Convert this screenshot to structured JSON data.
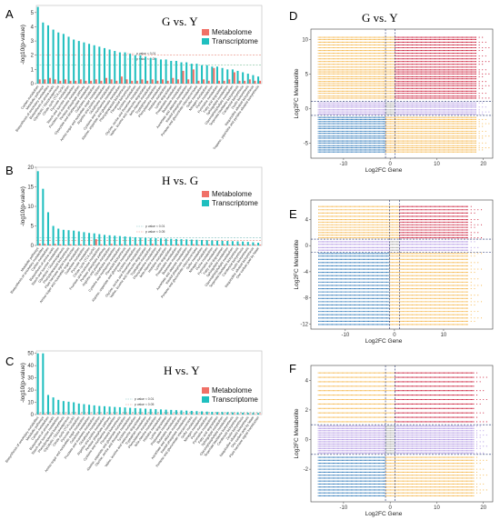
{
  "chart_data": [
    {
      "id": "A",
      "type": "bar",
      "title": "G vs. Y",
      "ylabel": "-log10(p-value)",
      "ylim": [
        0,
        5.5
      ],
      "yticks": [
        0,
        1,
        2,
        3,
        4,
        5
      ],
      "thresholds": [
        {
          "label": "p value < 0.01",
          "value": 2.0,
          "color": "#e8887c"
        },
        {
          "label": "p value < 0.05",
          "value": 1.3,
          "color": "#7fbf9a"
        }
      ],
      "colors": {
        "Metabolome": "#f07067",
        "Transcriptome": "#1fbfbf"
      },
      "categories": [
        "Carbon metabolism",
        "Metabolic pathways",
        "Biosynthesis of secondary metabolites",
        "Biosynthesis of amino acids",
        "Glycolysis / Gluconeogenesis",
        "Citrate cycle (TCA cycle)",
        "Pyruvate metabolism",
        "Starch and sucrose metabolism",
        "Fructose and mannose metabolism",
        "Pentose phosphate pathway",
        "Glyoxylate and dicarboxylate metabolism",
        "Galactose metabolism",
        "Amino sugar and nucleotide sugar metabolism",
        "Arginine and proline metabolism",
        "Glutathione metabolism",
        "Cysteine and methionine metabolism",
        "Alanine, aspartate and glutamate metabolism",
        "Phenylpropanoid biosynthesis",
        "Flavonoid biosynthesis",
        "Tyrosine metabolism",
        "Glycine, serine and threonine metabolism",
        "Valine, leucine and isoleucine degradation",
        "beta-Alanine metabolism",
        "Tryptophan metabolism",
        "Phenylalanine metabolism",
        "Histidine metabolism",
        "Lysine degradation",
        "Propanoate metabolism",
        "Butanoate metabolism",
        "Ascorbate and aldarate metabolism",
        "Inositol phosphate metabolism",
        "Pentose and glucuronate interconversions",
        "Sulfur metabolism",
        "Nitrogen metabolism",
        "Purine metabolism",
        "Pyrimidine metabolism",
        "Fatty acid degradation",
        "Sphingolipid metabolism",
        "Glycerophospholipid metabolism",
        "Terpenoid backbone biosynthesis",
        "Carotenoid biosynthesis",
        "Zeatin biosynthesis",
        "Isoquinoline alkaloid biosynthesis",
        "Tropane, piperidine and pyridine alkaloid biosynthesis"
      ],
      "series": [
        {
          "name": "Metabolome",
          "values": [
            0.3,
            0.3,
            0.4,
            0.3,
            0.2,
            0.3,
            0.2,
            0.2,
            0.3,
            0.2,
            0.2,
            0.3,
            0.2,
            0.4,
            0.3,
            0.2,
            0.5,
            0.3,
            0.2,
            0.2,
            0.3,
            0.2,
            0.3,
            0.2,
            0.3,
            0.2,
            0.4,
            0.3,
            0.9,
            0.3,
            1.0,
            0.2,
            0.3,
            0.2,
            1.1,
            0.2,
            0.2,
            0.3,
            0.8,
            0.2,
            0.2,
            0.3,
            0.2,
            0.2
          ]
        },
        {
          "name": "Transcriptome",
          "values": [
            5.4,
            4.3,
            4.1,
            3.8,
            3.6,
            3.5,
            3.3,
            3.1,
            3.0,
            2.9,
            2.8,
            2.7,
            2.6,
            2.5,
            2.4,
            2.3,
            2.2,
            2.2,
            2.1,
            2.0,
            2.0,
            1.9,
            1.8,
            1.8,
            1.7,
            1.7,
            1.6,
            1.6,
            1.5,
            1.5,
            1.4,
            1.4,
            1.3,
            1.3,
            1.2,
            1.2,
            1.1,
            1.0,
            1.0,
            0.9,
            0.8,
            0.7,
            0.6,
            0.5
          ]
        }
      ]
    },
    {
      "id": "B",
      "type": "bar",
      "title": "H vs. G",
      "ylabel": "-log10(p-value)",
      "ylim": [
        0,
        20
      ],
      "yticks": [
        0,
        5,
        10,
        15,
        20
      ],
      "thresholds": [
        {
          "label": "p value < 0.01",
          "value": 2.0,
          "color": "#7fbfbf"
        },
        {
          "label": "p value < 0.05",
          "value": 1.3,
          "color": "#e8887c"
        }
      ],
      "colors": {
        "Metabolome": "#f07067",
        "Transcriptome": "#1fbfbf"
      },
      "categories": [
        "Metabolic pathways",
        "Biosynthesis of secondary metabolites",
        "Carbon metabolism",
        "Biosynthesis of amino acids",
        "Starch and sucrose metabolism",
        "Glycolysis / Gluconeogenesis",
        "Phenylpropanoid biosynthesis",
        "Plant hormone signal transduction",
        "Amino sugar and nucleotide sugar metabolism",
        "Galactose metabolism",
        "Pyruvate metabolism",
        "Citrate cycle (TCA cycle)",
        "Fructose and mannose metabolism",
        "Pentose phosphate pathway",
        "Arginine and proline metabolism",
        "Glutathione metabolism",
        "Cysteine and methionine metabolism",
        "Flavonoid biosynthesis",
        "Alanine, aspartate and glutamate metabolism",
        "Tyrosine metabolism",
        "Glycine, serine and threonine metabolism",
        "Valine, leucine and isoleucine degradation",
        "Tryptophan metabolism",
        "Phenylalanine metabolism",
        "beta-Alanine metabolism",
        "Histidine metabolism",
        "Lysine degradation",
        "Propanoate metabolism",
        "Butanoate metabolism",
        "Ascorbate and aldarate metabolism",
        "Inositol phosphate metabolism",
        "Pentose and glucuronate interconversions",
        "Sulfur metabolism",
        "Nitrogen metabolism",
        "Purine metabolism",
        "Pyrimidine metabolism",
        "Fatty acid degradation",
        "Sphingolipid metabolism",
        "Glycerophospholipid metabolism",
        "Terpenoid backbone biosynthesis",
        "Carotenoid biosynthesis",
        "Zeatin biosynthesis",
        "Isoquinoline alkaloid biosynthesis",
        "One carbon pool by folate"
      ],
      "series": [
        {
          "name": "Metabolome",
          "values": [
            0.5,
            0.4,
            0.3,
            0.4,
            0.3,
            0.2,
            0.3,
            0.2,
            0.3,
            0.2,
            0.2,
            1.6,
            0.3,
            0.2,
            0.4,
            0.2,
            0.3,
            0.2,
            0.2,
            0.3,
            0.2,
            0.2,
            0.4,
            0.2,
            0.3,
            0.2,
            0.2,
            0.3,
            0.2,
            0.2,
            0.3,
            0.2,
            0.2,
            0.3,
            0.2,
            0.2,
            0.3,
            0.2,
            0.2,
            0.3,
            0.2,
            0.2,
            0.2,
            0.2
          ]
        },
        {
          "name": "Transcriptome",
          "values": [
            19.0,
            14.5,
            8.5,
            5.0,
            4.3,
            4.0,
            3.9,
            3.8,
            3.6,
            3.4,
            3.2,
            3.1,
            2.9,
            2.7,
            2.6,
            2.5,
            2.4,
            2.3,
            2.2,
            2.1,
            2.0,
            1.95,
            1.9,
            1.85,
            1.8,
            1.75,
            1.7,
            1.65,
            1.6,
            1.55,
            1.5,
            1.45,
            1.4,
            1.35,
            1.3,
            1.25,
            1.2,
            1.15,
            1.1,
            1.05,
            1.0,
            0.9,
            0.8,
            0.7
          ]
        }
      ]
    },
    {
      "id": "C",
      "type": "bar",
      "title": "H vs. Y",
      "ylabel": "-log10(p-value)",
      "ylim": [
        0,
        52
      ],
      "yticks": [
        0,
        10,
        20,
        30,
        40,
        50
      ],
      "thresholds": [
        {
          "label": "p value < 0.01",
          "value": 2.0,
          "color": "#7fbfbf"
        },
        {
          "label": "p value < 0.05",
          "value": 1.3,
          "color": "#e8887c"
        }
      ],
      "colors": {
        "Metabolome": "#f07067",
        "Transcriptome": "#1fbfbf"
      },
      "categories": [
        "Biosynthesis of secondary metabolites",
        "Metabolic pathways",
        "Carbon metabolism",
        "Biosynthesis of amino acids",
        "Starch and sucrose metabolism",
        "Phenylpropanoid biosynthesis",
        "Glycolysis / Gluconeogenesis",
        "Citrate cycle (TCA cycle)",
        "Pyruvate metabolism",
        "Amino sugar and nucleotide sugar metabolism",
        "Galactose metabolism",
        "Fructose and mannose metabolism",
        "Glutathione metabolism",
        "Arginine and proline metabolism",
        "Pentose phosphate pathway",
        "Cysteine and methionine metabolism",
        "Flavonoid biosynthesis",
        "Alanine, aspartate and glutamate metabolism",
        "Glycine, serine and threonine metabolism",
        "Tyrosine metabolism",
        "Valine, leucine and isoleucine degradation",
        "Tryptophan metabolism",
        "Phenylalanine metabolism",
        "beta-Alanine metabolism",
        "Histidine metabolism",
        "Lysine degradation",
        "Propanoate metabolism",
        "Butanoate metabolism",
        "Ascorbate and aldarate metabolism",
        "Inositol phosphate metabolism",
        "Pentose and glucuronate interconversions",
        "Sulfur metabolism",
        "Nitrogen metabolism",
        "Purine metabolism",
        "Pyrimidine metabolism",
        "Fatty acid degradation",
        "Sphingolipid metabolism",
        "Glycerophospholipid metabolism",
        "Terpenoid backbone biosynthesis",
        "Carotenoid biosynthesis",
        "Zeatin biosynthesis",
        "Isoquinoline alkaloid biosynthesis",
        "One carbon pool by folate",
        "Plant hormone signal transduction"
      ],
      "series": [
        {
          "name": "Metabolome",
          "values": [
            0.5,
            0.6,
            0.4,
            0.5,
            0.3,
            0.4,
            0.3,
            0.3,
            0.4,
            0.3,
            0.3,
            0.4,
            0.3,
            0.3,
            0.4,
            0.3,
            0.3,
            0.4,
            0.3,
            0.3,
            0.4,
            0.3,
            0.3,
            0.4,
            0.3,
            0.3,
            0.4,
            0.3,
            0.3,
            0.4,
            0.3,
            0.3,
            0.4,
            0.3,
            0.3,
            0.4,
            0.3,
            0.3,
            0.4,
            0.3,
            0.3,
            0.4,
            0.3,
            0.3
          ]
        },
        {
          "name": "Transcriptome",
          "values": [
            50.0,
            50.0,
            16.0,
            14.0,
            12.0,
            11.0,
            10.5,
            10.0,
            9.0,
            8.5,
            8.0,
            7.5,
            7.0,
            6.8,
            6.5,
            6.2,
            6.0,
            5.8,
            5.5,
            5.3,
            5.0,
            4.8,
            4.6,
            4.4,
            4.2,
            4.0,
            3.8,
            3.6,
            3.4,
            3.2,
            3.0,
            2.8,
            2.6,
            2.4,
            2.2,
            2.0,
            1.9,
            1.8,
            1.7,
            1.6,
            1.5,
            1.4,
            1.3,
            1.2
          ]
        }
      ]
    },
    {
      "id": "D",
      "type": "scatter",
      "title": "G vs. Y",
      "xlabel": "Log2FC Gene",
      "ylabel": "Log2FC Metabolite",
      "xlim": [
        -17,
        22
      ],
      "ylim": [
        -7.2,
        11.5
      ],
      "xticks": [
        -10,
        0,
        10,
        20
      ],
      "yticks": [
        -5,
        0,
        5,
        10
      ],
      "vlines": [
        -1,
        1
      ],
      "hlines": [
        -1,
        1
      ],
      "metabolite_levels": [
        -6.3,
        -6.0,
        -5.7,
        -5.4,
        -5.0,
        -4.7,
        -4.3,
        -4.0,
        -3.6,
        -3.3,
        -2.9,
        -2.6,
        -2.2,
        -1.9,
        -1.6,
        -1.3,
        -0.8,
        -0.5,
        -0.2,
        0.2,
        0.5,
        0.8,
        1.5,
        1.8,
        2.2,
        2.5,
        2.9,
        3.3,
        3.6,
        3.9,
        4.3,
        4.6,
        5.0,
        5.3,
        5.6,
        6.0,
        6.4,
        6.8,
        7.2,
        7.6,
        8.0,
        8.4,
        8.8,
        9.2,
        9.6,
        10.0,
        10.3
      ],
      "gene_range": [
        -15.5,
        18.5
      ]
    },
    {
      "id": "E",
      "type": "scatter",
      "title": "H vs. G",
      "xlabel": "Log2FC Gene",
      "ylabel": "Log2FC Metabolite",
      "xlim": [
        -17,
        20
      ],
      "ylim": [
        -12.8,
        7
      ],
      "xticks": [
        -10,
        0,
        10
      ],
      "yticks": [
        -12,
        -8,
        -4,
        0,
        4
      ],
      "vlines": [
        -1,
        1
      ],
      "hlines": [
        -1,
        1
      ],
      "metabolite_levels": [
        -12.1,
        -11.6,
        -11.1,
        -10.6,
        -10.1,
        -9.6,
        -9.1,
        -8.6,
        -8.1,
        -7.6,
        -7.1,
        -6.6,
        -6.1,
        -5.6,
        -5.1,
        -4.6,
        -4.1,
        -3.6,
        -3.1,
        -2.6,
        -2.1,
        -1.6,
        -1.2,
        -0.7,
        -0.3,
        0.2,
        0.6,
        1.2,
        1.6,
        2.0,
        2.4,
        2.8,
        3.2,
        3.6,
        4.0,
        4.5,
        5.0,
        5.5,
        6.0
      ],
      "gene_range": [
        -15.5,
        15
      ]
    },
    {
      "id": "F",
      "type": "scatter",
      "title": "H vs. Y",
      "xlabel": "Log2FC Gene",
      "ylabel": "Log2FC Metabolite",
      "xlim": [
        -17,
        22
      ],
      "ylim": [
        -4.2,
        5
      ],
      "xticks": [
        -10,
        0,
        10,
        20
      ],
      "yticks": [
        -2,
        0,
        2,
        4
      ],
      "vlines": [
        -1,
        1
      ],
      "hlines": [
        -1,
        1
      ],
      "metabolite_levels": [
        -3.8,
        -3.6,
        -3.4,
        -3.2,
        -3.0,
        -2.8,
        -2.6,
        -2.4,
        -2.2,
        -2.0,
        -1.8,
        -1.6,
        -1.4,
        -1.2,
        -0.9,
        -0.75,
        -0.6,
        -0.45,
        -0.3,
        -0.15,
        0.0,
        0.15,
        0.3,
        0.45,
        0.6,
        0.75,
        0.9,
        1.2,
        1.5,
        1.8,
        2.1,
        2.4,
        2.7,
        3.0,
        3.3,
        3.6,
        3.9,
        4.2,
        4.5
      ],
      "gene_range": [
        -15.5,
        18
      ]
    }
  ],
  "legend": {
    "metabolome_label": "Metabolome",
    "transcriptome_label": "Transcriptome"
  },
  "quadrant_colors": {
    "up_up": "#c8102e",
    "down_down": "#1f6fb4",
    "discordant": "#f5b342",
    "center": "#a98be0",
    "zero": "#9e9e9e"
  }
}
